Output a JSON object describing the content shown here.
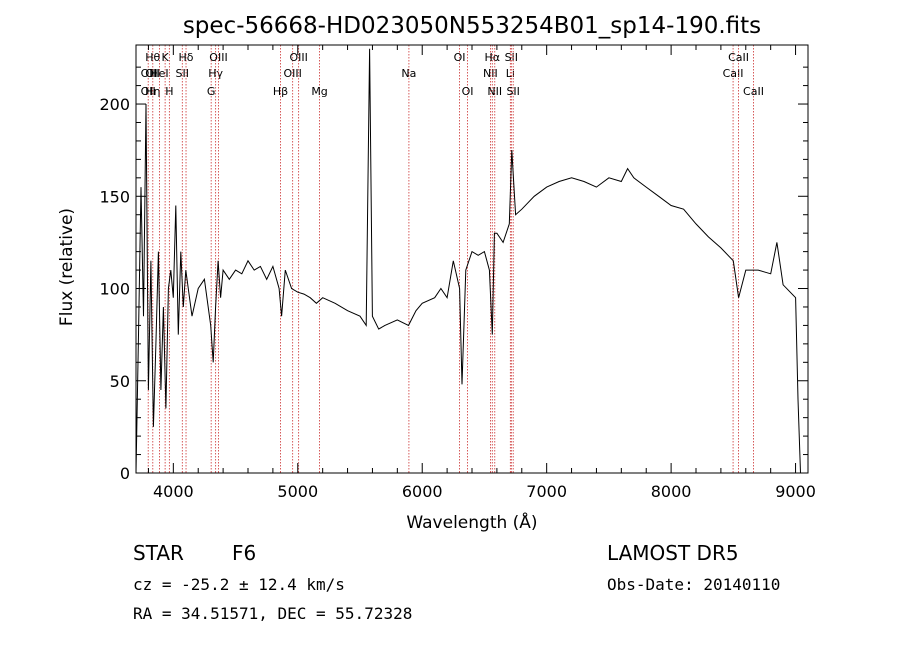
{
  "chart_data": {
    "type": "line",
    "title": "spec-56668-HD023050N553254B01_sp14-190.fits",
    "xlabel": "Wavelength (Å)",
    "ylabel": "Flux (relative)",
    "xlim": [
      3700,
      9100
    ],
    "ylim": [
      0,
      232
    ],
    "xticks": [
      4000,
      5000,
      6000,
      7000,
      8000,
      9000
    ],
    "yticks": [
      0,
      50,
      100,
      150,
      200
    ],
    "grid": false,
    "line_color": "#000000",
    "marker_color": "#cc3333",
    "series": [
      {
        "x": [
          3700,
          3720,
          3740,
          3760,
          3780,
          3800,
          3820,
          3840,
          3860,
          3880,
          3900,
          3920,
          3940,
          3960,
          3980,
          4000,
          4020,
          4040,
          4060,
          4080,
          4100,
          4150,
          4200,
          4250,
          4300,
          4320,
          4340,
          4360,
          4380,
          4400,
          4450,
          4500,
          4550,
          4600,
          4650,
          4700,
          4750,
          4800,
          4850,
          4870,
          4900,
          4950,
          5000,
          5050,
          5100,
          5150,
          5200,
          5300,
          5400,
          5500,
          5550,
          5577,
          5600,
          5650,
          5700,
          5800,
          5890,
          5950,
          6000,
          6100,
          6150,
          6200,
          6250,
          6300,
          6320,
          6350,
          6400,
          6450,
          6500,
          6540,
          6563,
          6580,
          6600,
          6650,
          6700,
          6720,
          6750,
          6800,
          6900,
          7000,
          7100,
          7200,
          7300,
          7400,
          7500,
          7600,
          7650,
          7700,
          7800,
          7900,
          8000,
          8100,
          8200,
          8300,
          8400,
          8500,
          8542,
          8600,
          8700,
          8800,
          8850,
          8900,
          9000,
          9020,
          9040
        ],
        "y": [
          0,
          75,
          155,
          85,
          200,
          45,
          115,
          25,
          70,
          120,
          45,
          90,
          35,
          100,
          110,
          95,
          145,
          75,
          120,
          90,
          110,
          85,
          100,
          105,
          80,
          60,
          90,
          115,
          95,
          110,
          105,
          110,
          108,
          115,
          110,
          112,
          105,
          112,
          100,
          85,
          110,
          100,
          98,
          97,
          95,
          92,
          95,
          92,
          88,
          85,
          80,
          230,
          85,
          78,
          80,
          83,
          80,
          88,
          92,
          95,
          100,
          95,
          115,
          100,
          48,
          110,
          120,
          118,
          120,
          110,
          75,
          130,
          130,
          125,
          135,
          175,
          140,
          143,
          150,
          155,
          158,
          160,
          158,
          155,
          160,
          158,
          165,
          160,
          155,
          150,
          145,
          143,
          135,
          128,
          122,
          115,
          95,
          110,
          110,
          108,
          125,
          102,
          95,
          40,
          0
        ]
      }
    ],
    "lines": [
      {
        "x": 3798,
        "label": "OII",
        "row": 1
      },
      {
        "x": 3798,
        "label": "OII",
        "row": 2
      },
      {
        "x": 3835,
        "label": "Hθ",
        "row": 0
      },
      {
        "x": 3835,
        "label": "OII",
        "row": 1
      },
      {
        "x": 3835,
        "label": "Hη",
        "row": 2
      },
      {
        "x": 3889,
        "label": "HeI",
        "row": 1
      },
      {
        "x": 3934,
        "label": "K",
        "row": 0
      },
      {
        "x": 3968,
        "label": "H",
        "row": 2
      },
      {
        "x": 4072,
        "label": "SII",
        "row": 1
      },
      {
        "x": 4102,
        "label": "Hδ",
        "row": 0
      },
      {
        "x": 4304,
        "label": "G",
        "row": 2
      },
      {
        "x": 4340,
        "label": "Hγ",
        "row": 1
      },
      {
        "x": 4363,
        "label": "OIII",
        "row": 0
      },
      {
        "x": 4861,
        "label": "Hβ",
        "row": 2
      },
      {
        "x": 4959,
        "label": "OIII",
        "row": 1
      },
      {
        "x": 5007,
        "label": "OIII",
        "row": 0
      },
      {
        "x": 5175,
        "label": "Mg",
        "row": 2
      },
      {
        "x": 5893,
        "label": "Na",
        "row": 1
      },
      {
        "x": 6300,
        "label": "OI",
        "row": 0
      },
      {
        "x": 6364,
        "label": "OI",
        "row": 2
      },
      {
        "x": 6548,
        "label": "NII",
        "row": 1
      },
      {
        "x": 6563,
        "label": "Hα",
        "row": 0
      },
      {
        "x": 6583,
        "label": "NII",
        "row": 2
      },
      {
        "x": 6708,
        "label": "Li",
        "row": 1
      },
      {
        "x": 6716,
        "label": "SII",
        "row": 0
      },
      {
        "x": 6731,
        "label": "SII",
        "row": 2
      },
      {
        "x": 8498,
        "label": "CaII",
        "row": 1
      },
      {
        "x": 8542,
        "label": "CaII",
        "row": 0
      },
      {
        "x": 8662,
        "label": "CaII",
        "row": 2
      }
    ]
  },
  "info": {
    "object_class": "STAR",
    "subclass": "F6",
    "survey": "LAMOST DR5",
    "redshift": "cz = -25.2 ± 12.4 km/s",
    "obs_date": "Obs-Date: 20140110",
    "coords": "RA =  34.51571, DEC =  55.72328"
  }
}
